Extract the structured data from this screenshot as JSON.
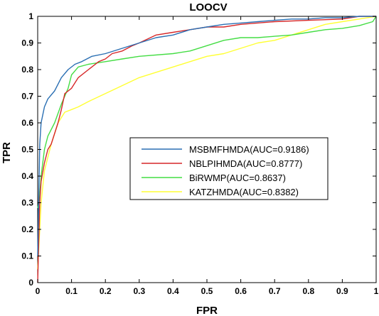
{
  "chart_data": {
    "type": "line",
    "title": "LOOCV",
    "xlabel": "FPR",
    "ylabel": "TPR",
    "xlim": [
      0,
      1
    ],
    "ylim": [
      0,
      1
    ],
    "x_ticks": [
      "0",
      "0.1",
      "0.2",
      "0.3",
      "0.4",
      "0.5",
      "0.6",
      "0.7",
      "0.8",
      "0.9",
      "1"
    ],
    "y_ticks": [
      "0",
      "0.1",
      "0.2",
      "0.3",
      "0.4",
      "0.5",
      "0.6",
      "0.7",
      "0.8",
      "0.9",
      "1"
    ],
    "grid": false,
    "legend_position": "center-right",
    "series": [
      {
        "name": "MSBMFHMDA(AUC=0.9186)",
        "color": "#2a6fb3",
        "x": [
          0,
          0.003,
          0.006,
          0.01,
          0.02,
          0.03,
          0.05,
          0.07,
          0.09,
          0.11,
          0.13,
          0.16,
          0.2,
          0.25,
          0.3,
          0.35,
          0.4,
          0.45,
          0.5,
          0.55,
          0.6,
          0.65,
          0.7,
          0.75,
          0.8,
          0.85,
          0.9,
          0.95,
          1
        ],
        "y": [
          0.1,
          0.3,
          0.52,
          0.6,
          0.66,
          0.69,
          0.72,
          0.77,
          0.8,
          0.82,
          0.83,
          0.85,
          0.86,
          0.88,
          0.9,
          0.92,
          0.93,
          0.95,
          0.96,
          0.97,
          0.975,
          0.98,
          0.985,
          0.99,
          0.99,
          0.995,
          0.995,
          1,
          1
        ]
      },
      {
        "name": "NBLPIHMDA(AUC=0.8777)",
        "color": "#d62728",
        "x": [
          0,
          0.003,
          0.006,
          0.01,
          0.02,
          0.03,
          0.04,
          0.05,
          0.06,
          0.07,
          0.08,
          0.1,
          0.12,
          0.15,
          0.18,
          0.2,
          0.22,
          0.25,
          0.28,
          0.3,
          0.35,
          0.4,
          0.45,
          0.5,
          0.55,
          0.6,
          0.7,
          0.8,
          0.9,
          0.95,
          1
        ],
        "y": [
          0,
          0.15,
          0.3,
          0.38,
          0.45,
          0.5,
          0.52,
          0.56,
          0.6,
          0.65,
          0.71,
          0.73,
          0.77,
          0.8,
          0.83,
          0.84,
          0.86,
          0.87,
          0.89,
          0.9,
          0.93,
          0.94,
          0.95,
          0.96,
          0.96,
          0.97,
          0.98,
          0.985,
          0.99,
          1,
          1
        ]
      },
      {
        "name": "BiRWMP(AUC=0.8637)",
        "color": "#44dd44",
        "x": [
          0,
          0.005,
          0.01,
          0.02,
          0.03,
          0.05,
          0.07,
          0.09,
          0.1,
          0.12,
          0.15,
          0.2,
          0.25,
          0.3,
          0.4,
          0.45,
          0.5,
          0.55,
          0.6,
          0.65,
          0.7,
          0.75,
          0.8,
          0.85,
          0.9,
          0.95,
          0.99,
          1
        ],
        "y": [
          0.28,
          0.31,
          0.4,
          0.5,
          0.55,
          0.6,
          0.67,
          0.73,
          0.78,
          0.81,
          0.82,
          0.83,
          0.84,
          0.85,
          0.86,
          0.87,
          0.89,
          0.91,
          0.92,
          0.92,
          0.925,
          0.93,
          0.94,
          0.95,
          0.955,
          0.965,
          0.98,
          1
        ]
      },
      {
        "name": "KATZHMDA(AUC=0.8382)",
        "color": "#ffff33",
        "x": [
          0,
          0.01,
          0.02,
          0.04,
          0.06,
          0.08,
          0.1,
          0.12,
          0.15,
          0.2,
          0.25,
          0.3,
          0.35,
          0.4,
          0.45,
          0.5,
          0.55,
          0.6,
          0.65,
          0.7,
          0.75,
          0.8,
          0.85,
          0.9,
          0.95,
          1
        ],
        "y": [
          0.05,
          0.3,
          0.42,
          0.52,
          0.6,
          0.64,
          0.65,
          0.66,
          0.68,
          0.71,
          0.74,
          0.77,
          0.79,
          0.81,
          0.83,
          0.85,
          0.86,
          0.88,
          0.9,
          0.91,
          0.93,
          0.95,
          0.97,
          0.98,
          0.99,
          1
        ]
      }
    ]
  }
}
